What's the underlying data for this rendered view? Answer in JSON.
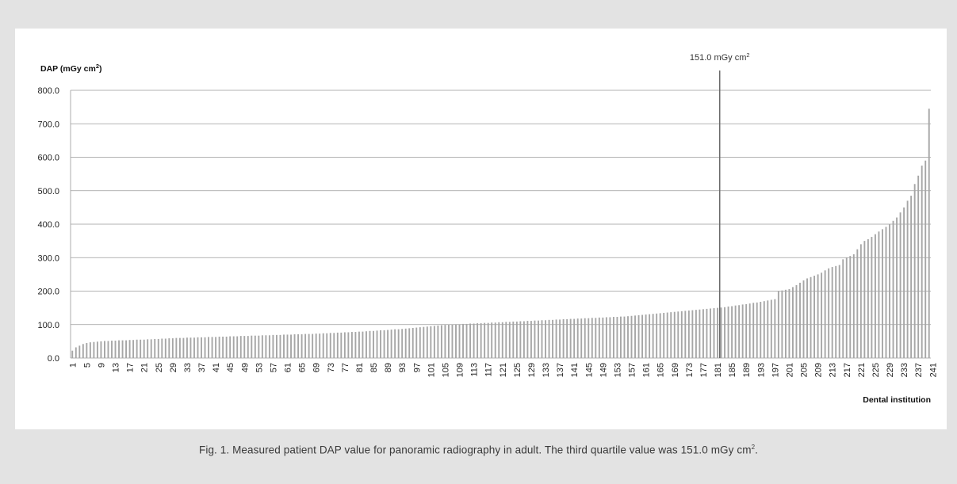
{
  "chart_data": {
    "type": "bar",
    "ylabel_prefix": "DAP (mGy cm",
    "ylabel_sup": "2",
    "ylabel_suffix": ")",
    "xlabel": "Dental institution",
    "ylim": [
      0,
      800
    ],
    "yticks": [
      "0.0",
      "100.0",
      "200.0",
      "300.0",
      "400.0",
      "500.0",
      "600.0",
      "700.0",
      "800.0"
    ],
    "x_tick_labels": [
      "1",
      "5",
      "9",
      "13",
      "17",
      "21",
      "25",
      "29",
      "33",
      "37",
      "41",
      "45",
      "49",
      "53",
      "57",
      "61",
      "65",
      "69",
      "73",
      "77",
      "81",
      "85",
      "89",
      "93",
      "97",
      "101",
      "105",
      "109",
      "113",
      "117",
      "121",
      "125",
      "129",
      "133",
      "137",
      "141",
      "145",
      "149",
      "153",
      "157",
      "161",
      "165",
      "169",
      "173",
      "177",
      "181",
      "185",
      "189",
      "193",
      "197",
      "201",
      "205",
      "209",
      "213",
      "217",
      "221",
      "225",
      "229",
      "233",
      "237",
      "241"
    ],
    "grid": true,
    "bar_color": "#a6a6a6",
    "annotation": {
      "label_prefix": "151.0 mGy cm",
      "label_sup": "2",
      "value": 151.0,
      "x_institution": 181
    },
    "values": [
      22,
      32,
      37,
      42,
      45,
      47,
      48,
      49,
      50,
      51,
      51,
      52,
      52,
      53,
      53,
      53,
      54,
      54,
      55,
      55,
      55,
      56,
      56,
      57,
      57,
      58,
      58,
      59,
      59,
      60,
      60,
      60,
      61,
      61,
      61,
      62,
      62,
      62,
      63,
      63,
      63,
      64,
      64,
      64,
      65,
      65,
      65,
      66,
      66,
      66,
      67,
      67,
      67,
      68,
      68,
      68,
      69,
      69,
      69,
      70,
      70,
      70,
      71,
      71,
      71,
      72,
      72,
      72,
      73,
      73,
      74,
      74,
      75,
      75,
      76,
      76,
      77,
      77,
      78,
      78,
      79,
      79,
      80,
      81,
      81,
      82,
      83,
      83,
      84,
      85,
      86,
      86,
      87,
      88,
      89,
      90,
      91,
      92,
      93,
      94,
      95,
      96,
      97,
      98,
      99,
      100,
      100,
      101,
      101,
      102,
      102,
      103,
      103,
      104,
      104,
      105,
      105,
      106,
      106,
      107,
      107,
      108,
      108,
      109,
      109,
      110,
      110,
      111,
      111,
      112,
      112,
      113,
      113,
      114,
      114,
      115,
      115,
      116,
      116,
      117,
      117,
      118,
      118,
      119,
      119,
      120,
      120,
      121,
      121,
      122,
      122,
      123,
      123,
      124,
      124,
      125,
      126,
      127,
      128,
      129,
      130,
      131,
      132,
      133,
      134,
      135,
      136,
      137,
      138,
      139,
      140,
      141,
      142,
      143,
      144,
      145,
      146,
      147,
      148,
      149,
      150,
      151,
      152,
      154,
      155,
      157,
      158,
      160,
      161,
      163,
      165,
      166,
      168,
      170,
      172,
      174,
      176,
      200,
      202,
      204,
      206,
      212,
      218,
      225,
      232,
      238,
      242,
      246,
      250,
      255,
      262,
      268,
      272,
      275,
      278,
      295,
      300,
      305,
      310,
      325,
      340,
      350,
      355,
      362,
      370,
      378,
      385,
      392,
      400,
      410,
      420,
      435,
      450,
      470,
      485,
      520,
      545,
      575,
      590,
      745
    ]
  },
  "caption": {
    "text": "Fig. 1. Measured patient DAP value for panoramic radiography in adult. The third quartile value was 151.0 mGy cm",
    "sup": "2",
    "end": "."
  }
}
